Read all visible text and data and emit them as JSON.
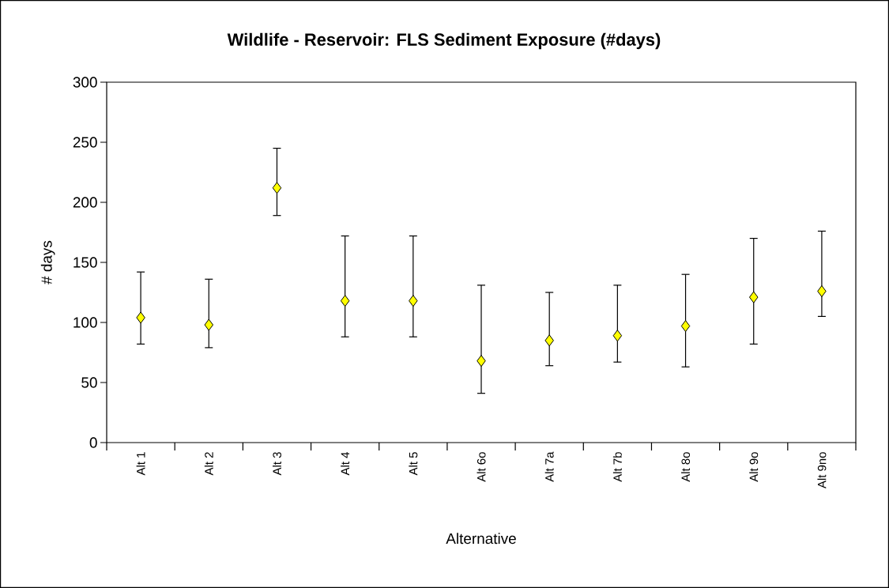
{
  "chart_data": {
    "type": "scatter",
    "title": "Wildlife - Reservoir:  FLS Sediment Exposure (#days)",
    "xlabel": "Alternative",
    "ylabel": "# days",
    "categories": [
      "Alt 1",
      "Alt 2",
      "Alt 3",
      "Alt 4",
      "Alt 5",
      "Alt 6o",
      "Alt 7a",
      "Alt 7b",
      "Alt 8o",
      "Alt 9o",
      "Alt 9no"
    ],
    "values": [
      104,
      98,
      212,
      118,
      118,
      68,
      85,
      89,
      97,
      121,
      126
    ],
    "errors": [
      [
        82,
        142
      ],
      [
        79,
        136
      ],
      [
        189,
        245
      ],
      [
        88,
        172
      ],
      [
        88,
        172
      ],
      [
        41,
        131
      ],
      [
        64,
        125
      ],
      [
        67,
        131
      ],
      [
        63,
        140
      ],
      [
        82,
        170
      ],
      [
        105,
        176
      ]
    ],
    "color": "#ffff00",
    "marker": "diamond",
    "ylim": [
      0,
      300
    ],
    "yticks": [
      0,
      50,
      100,
      150,
      200,
      250,
      300
    ]
  }
}
